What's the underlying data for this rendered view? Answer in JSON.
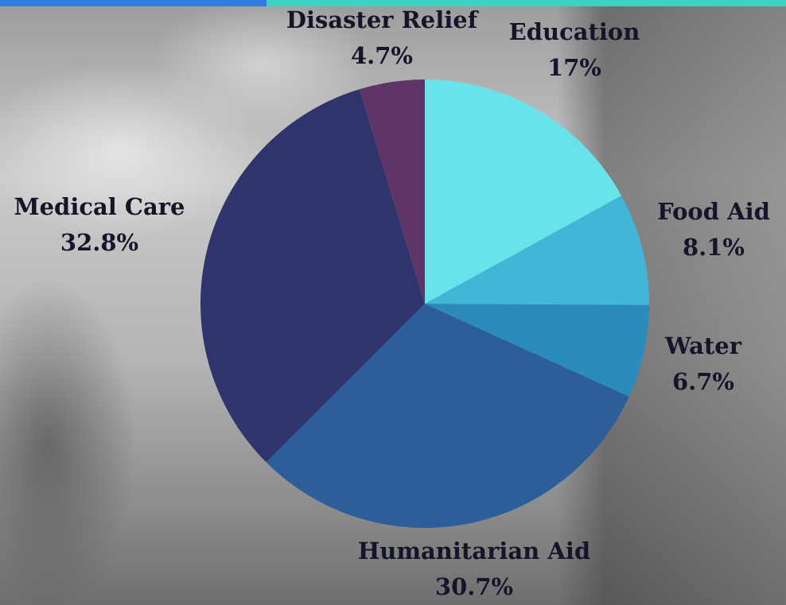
{
  "chart_data": {
    "type": "pie",
    "categories": [
      "Education",
      "Food Aid",
      "Water",
      "Humanitarian Aid",
      "Medical Care",
      "Disaster Relief"
    ],
    "values": [
      17,
      8.1,
      6.7,
      30.7,
      32.8,
      4.7
    ],
    "value_labels": [
      "17%",
      "8.1%",
      "6.7%",
      "30.7%",
      "32.8%",
      "4.7%"
    ],
    "colors": [
      "#67e3e9",
      "#41b6d6",
      "#2b8cbb",
      "#2d5e9a",
      "#2f346d",
      "#5f3466"
    ]
  }
}
